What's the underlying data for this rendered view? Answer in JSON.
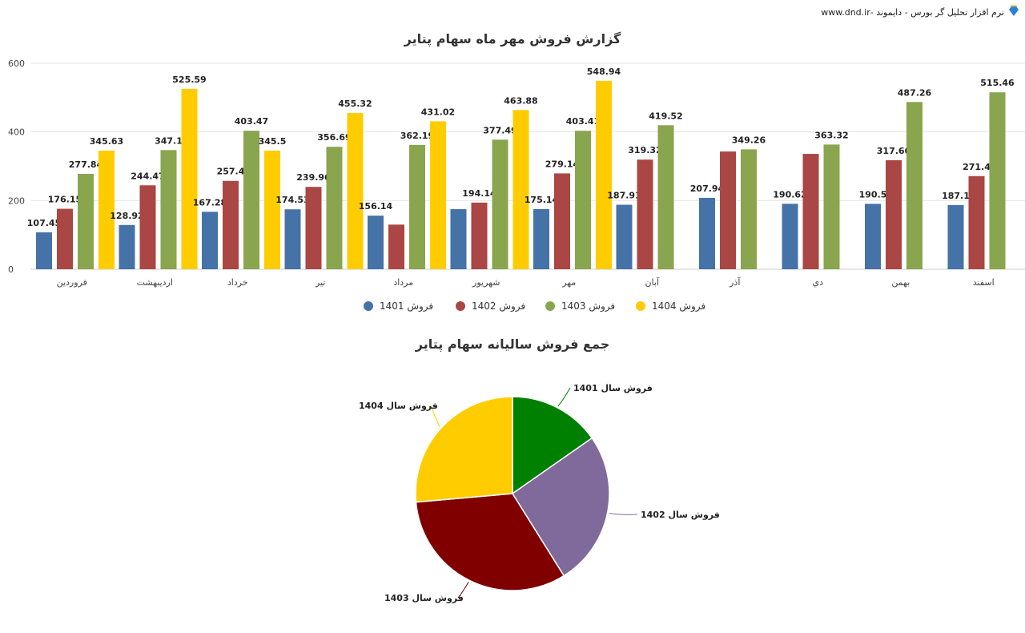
{
  "header": {
    "text": "نرم افزار تحلیل گر بورس - دایموند -www.dnd.ir",
    "logo_icon": "diamond-icon"
  },
  "chart_data": [
    {
      "type": "bar",
      "title": "گزارش فروش مهر ماه سهام پتایر",
      "xlabel": "",
      "ylabel": "",
      "ylim": [
        0,
        600
      ],
      "yticks": [
        "0",
        "200",
        "400",
        "600"
      ],
      "grid": true,
      "legend_position": "bottom",
      "categories": [
        "فروردین",
        "اردیبهشت",
        "خرداد",
        "تیر",
        "مرداد",
        "شهریور",
        "مهر",
        "آبان",
        "آذر",
        "دي",
        "بهمن",
        "اسفند"
      ],
      "series": [
        {
          "name": "فروش 1401",
          "color": "#4572a7",
          "values": [
            107.45,
            128.92,
            167.28,
            174.53,
            156.14,
            175,
            175.14,
            187.91,
            207.94,
            190.62,
            190.5,
            187.1
          ],
          "labels": [
            "107.45",
            "128.92",
            "167.28",
            "174.53",
            "156.14",
            null,
            "175.14",
            "187.91",
            "207.94",
            "190.62",
            "190.5",
            "187.1"
          ]
        },
        {
          "name": "فروش 1402",
          "color": "#aa4643",
          "values": [
            176.15,
            244.47,
            257.4,
            239.96,
            130,
            194.14,
            279.14,
            319.32,
            343,
            336,
            317.66,
            271.4
          ],
          "labels": [
            "176.15",
            "244.47",
            "257.4",
            "239.96",
            null,
            "194.14",
            "279.14",
            "319.32",
            null,
            null,
            "317.66",
            "271.4"
          ]
        },
        {
          "name": "فروش 1403",
          "color": "#89a54e",
          "values": [
            277.84,
            347.1,
            403.47,
            356.69,
            362.19,
            377.49,
            403.41,
            419.52,
            349.26,
            363.32,
            487.26,
            515.46
          ],
          "labels": [
            "277.84",
            "347.1",
            "403.47",
            "356.69",
            "362.19",
            "377.49",
            "403.41",
            "419.52",
            "349.26",
            "363.32",
            "487.26",
            "515.46"
          ]
        },
        {
          "name": "فروش 1404",
          "color": "#ffcc00",
          "values": [
            345.63,
            525.59,
            345.5,
            455.32,
            431.02,
            463.88,
            548.94,
            null,
            null,
            null,
            null,
            null
          ],
          "labels": [
            "345.63",
            "525.59",
            "345.5",
            "455.32",
            "431.02",
            "463.88",
            "548.94",
            null,
            null,
            null,
            null,
            null
          ]
        }
      ]
    },
    {
      "type": "pie",
      "title": "جمع فروش سالیانه سهام پتایر",
      "slices": [
        {
          "name": "فروش سال 1401",
          "value": 15.3,
          "color": "#008000"
        },
        {
          "name": "فروش سال 1402",
          "value": 25.8,
          "color": "#80699b"
        },
        {
          "name": "فروش سال 1403",
          "value": 32.5,
          "color": "#800000"
        },
        {
          "name": "فروش سال 1404",
          "value": 26.4,
          "color": "#ffcc00"
        }
      ]
    }
  ]
}
